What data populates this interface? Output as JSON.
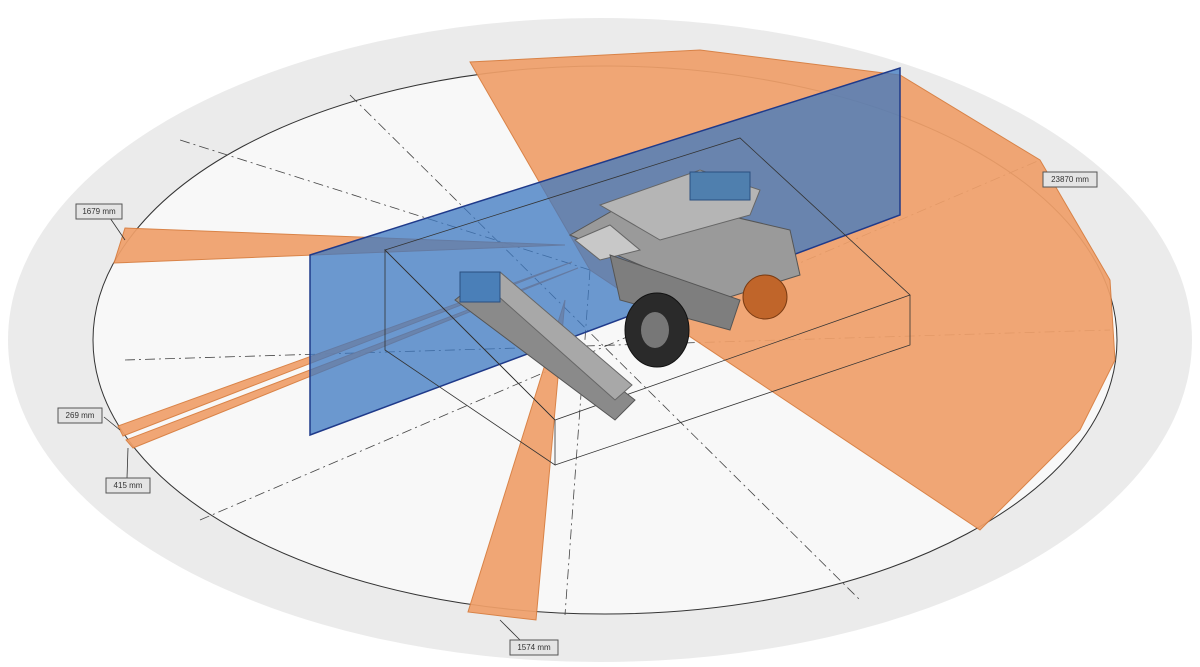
{
  "labels": [
    "1679 mm",
    "23870 mm",
    "269 mm",
    "415 mm",
    "1574 mm"
  ]
}
